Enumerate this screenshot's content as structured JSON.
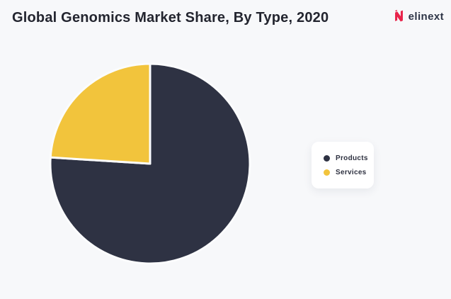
{
  "header": {
    "title": "Global Genomics Market Share, By Type, 2020",
    "logo_text": "elinext",
    "logo_color": "#e8234a",
    "logo_text_color": "#2e3547"
  },
  "colors": {
    "background": "#f7f8fa",
    "title_text": "#23252f",
    "legend_card": "#ffffff",
    "legend_text": "#2e3140",
    "slice_gap": "#fbfcfd"
  },
  "chart_data": {
    "type": "pie",
    "title": "Global Genomics Market Share, By Type, 2020",
    "labels": [
      "Products",
      "Services"
    ],
    "values": [
      76,
      24
    ],
    "colors": [
      "#2e3243",
      "#f2c43c"
    ],
    "start_angle_deg": -90,
    "direction": "clockwise",
    "legend_position": "right",
    "data_labels_shown": false
  }
}
